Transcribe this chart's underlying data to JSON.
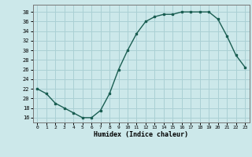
{
  "x": [
    0,
    1,
    2,
    3,
    4,
    5,
    6,
    7,
    8,
    9,
    10,
    11,
    12,
    13,
    14,
    15,
    16,
    17,
    18,
    19,
    20,
    21,
    22,
    23
  ],
  "y": [
    22,
    21,
    19,
    18,
    17,
    16,
    16,
    17.5,
    21,
    26,
    30,
    33.5,
    36,
    37,
    37.5,
    37.5,
    38,
    38,
    38,
    38,
    36.5,
    33,
    29,
    26.5
  ],
  "line_color": "#1a5e52",
  "marker_color": "#1a5e52",
  "bg_color": "#cce8ea",
  "grid_color": "#aad0d4",
  "xlabel": "Humidex (Indice chaleur)",
  "ylim": [
    15,
    39.5
  ],
  "yticks": [
    16,
    18,
    20,
    22,
    24,
    26,
    28,
    30,
    32,
    34,
    36,
    38
  ],
  "xticks": [
    0,
    1,
    2,
    3,
    4,
    5,
    6,
    7,
    8,
    9,
    10,
    11,
    12,
    13,
    14,
    15,
    16,
    17,
    18,
    19,
    20,
    21,
    22,
    23
  ],
  "xlim": [
    -0.5,
    23.5
  ]
}
